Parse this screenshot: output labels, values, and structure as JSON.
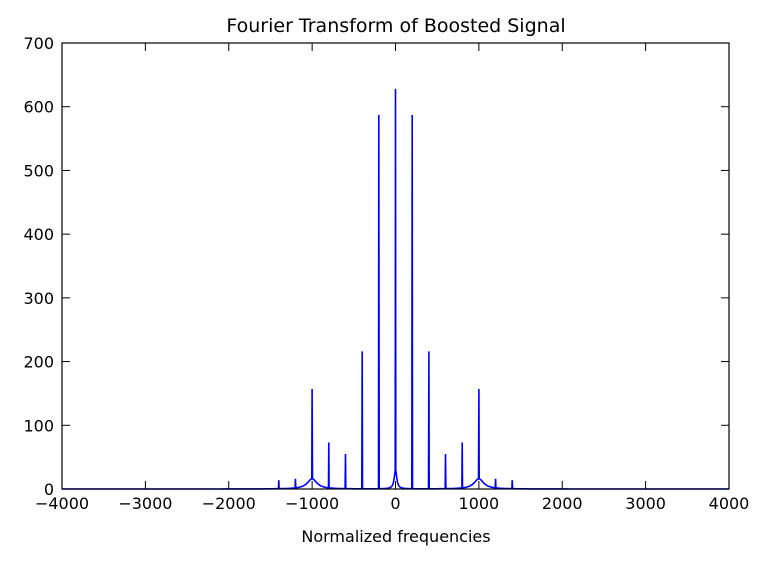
{
  "chart_data": {
    "type": "line",
    "title": "Fourier Transform of Boosted Signal",
    "xlabel": "Normalized frequencies",
    "ylabel": "",
    "xlim": [
      -4000,
      4000
    ],
    "ylim": [
      0,
      700
    ],
    "xticks": [
      -4000,
      -3000,
      -2000,
      -1000,
      0,
      1000,
      2000,
      3000,
      4000
    ],
    "xtick_labels": [
      "−4000",
      "−3000",
      "−2000",
      "−1000",
      "0",
      "1000",
      "2000",
      "3000",
      "4000"
    ],
    "yticks": [
      0,
      100,
      200,
      300,
      400,
      500,
      600,
      700
    ],
    "ytick_labels": [
      "0",
      "100",
      "200",
      "300",
      "400",
      "500",
      "600",
      "700"
    ],
    "grid": false,
    "legend": "none",
    "line_color": "#0000ff",
    "series": [
      {
        "peaks": [
          {
            "x": -1400,
            "y": 14
          },
          {
            "x": -1200,
            "y": 16
          },
          {
            "x": -1000,
            "y": 157
          },
          {
            "x": -800,
            "y": 73
          },
          {
            "x": -600,
            "y": 55
          },
          {
            "x": -400,
            "y": 216
          },
          {
            "x": -200,
            "y": 587
          },
          {
            "x": 0,
            "y": 628
          },
          {
            "x": 200,
            "y": 587
          },
          {
            "x": 400,
            "y": 216
          },
          {
            "x": 600,
            "y": 55
          },
          {
            "x": 800,
            "y": 73
          },
          {
            "x": 1000,
            "y": 157
          },
          {
            "x": 1200,
            "y": 16
          },
          {
            "x": 1400,
            "y": 14
          }
        ],
        "hump_peaks": [
          {
            "x": -1000,
            "y": 16
          },
          {
            "x": 0,
            "y": 30
          },
          {
            "x": 1000,
            "y": 16
          }
        ]
      }
    ]
  }
}
